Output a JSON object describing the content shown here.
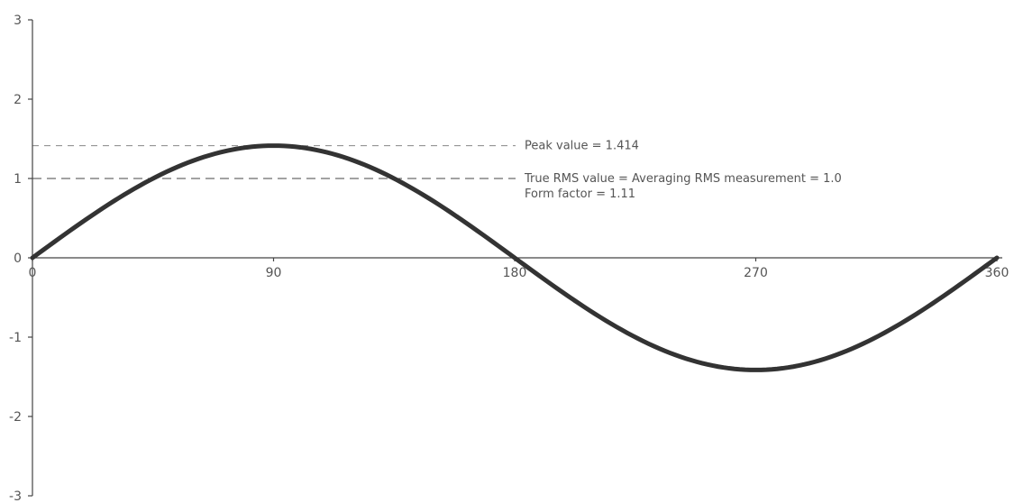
{
  "chart_data": {
    "type": "line",
    "title": "",
    "xlabel": "",
    "ylabel": "",
    "xlim": [
      0,
      360
    ],
    "ylim": [
      -3,
      3
    ],
    "x_ticks": [
      "0",
      "90",
      "180",
      "270",
      "360"
    ],
    "y_ticks": [
      "3",
      "2",
      "1",
      "0",
      "-1",
      "-2",
      "-3"
    ],
    "series": [
      {
        "function": "1.414 * sin(x in degrees)",
        "x": [
          0,
          30,
          60,
          90,
          120,
          150,
          180,
          210,
          240,
          270,
          300,
          330,
          360
        ],
        "y": [
          0,
          0.707,
          1.225,
          1.414,
          1.225,
          0.707,
          0,
          -0.707,
          -1.225,
          -1.414,
          -1.225,
          -0.707,
          0
        ],
        "color": "#333333"
      }
    ],
    "reference_lines": [
      {
        "y": 1.414,
        "label": "Peak value = 1.414",
        "style": "dashed",
        "color": "#888888"
      },
      {
        "y": 1.0,
        "label": "True RMS value = Averaging RMS measurement = 1.0",
        "style": "dashed",
        "color": "#444444"
      }
    ],
    "annotations": [
      {
        "text": "Form factor = 1.11"
      }
    ],
    "grid": false,
    "legend": "none"
  }
}
